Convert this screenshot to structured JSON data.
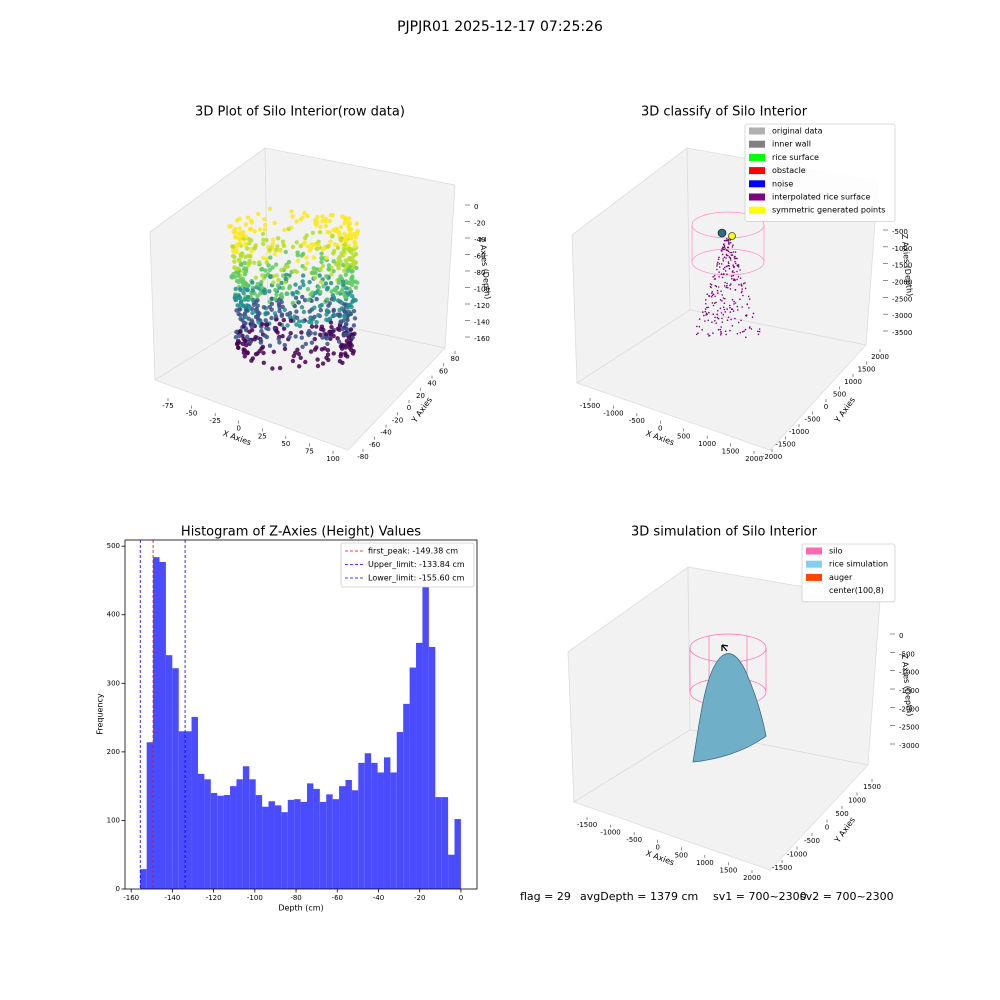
{
  "title": "PJPJR01 2025-12-17 07:25:26",
  "chart_data": [
    {
      "type": "scatter3d",
      "title": "3D Plot of Silo Interior(row data)",
      "xlabel": "X Axies",
      "ylabel": "Y Axies",
      "zlabel": "Z Axies (Depth)",
      "xticks": [
        -75,
        -50,
        -25,
        0,
        25,
        50,
        75,
        100
      ],
      "yticks": [
        -80,
        -60,
        -40,
        -20,
        0,
        20,
        40,
        60,
        80
      ],
      "zticks": [
        0,
        -20,
        -40,
        -60,
        -80,
        -100,
        -120,
        -140,
        -160
      ]
    },
    {
      "type": "scatter3d",
      "title": "3D classify of Silo Interior",
      "xlabel": "X Axies",
      "ylabel": "Y Axies",
      "zlabel": "Z Axies (Depth)",
      "xticks": [
        -1500,
        -1000,
        -500,
        0,
        500,
        1000,
        1500,
        2000
      ],
      "yticks": [
        -2000,
        -1500,
        -1000,
        -500,
        0,
        500,
        1000,
        1500,
        2000
      ],
      "zticks": [
        -500,
        -1000,
        -1500,
        -2000,
        -2500,
        -3000,
        -3500
      ],
      "legend": [
        {
          "name": "original data",
          "color": "#b0b0b0"
        },
        {
          "name": "inner wall",
          "color": "#808080"
        },
        {
          "name": "rice surface",
          "color": "#00ff00"
        },
        {
          "name": "obstacle",
          "color": "#ff0000"
        },
        {
          "name": "noise",
          "color": "#0000ff"
        },
        {
          "name": "interpolated rice surface",
          "color": "#800080"
        },
        {
          "name": "symmetric generated points",
          "color": "#ffff00"
        }
      ]
    },
    {
      "type": "histogram",
      "title": "Histogram of Z-Axies (Height) Values",
      "xlabel": "Depth (cm)",
      "ylabel": "Frequency",
      "color": "#4b4bff",
      "bins": [
        -155.6,
        -152.488,
        -149.376,
        -146.264,
        -143.152,
        -140.04,
        -136.928,
        -133.816,
        -130.704,
        -127.592,
        -124.48,
        -121.368,
        -118.256,
        -115.144,
        -112.032,
        -108.92,
        -105.808,
        -102.696,
        -99.584,
        -96.472,
        -93.36,
        -90.248,
        -87.136,
        -84.024,
        -80.912,
        -77.8,
        -74.688,
        -71.576,
        -68.464,
        -65.352,
        -62.24,
        -59.128,
        -56.016,
        -52.904,
        -49.792,
        -46.68,
        -43.568,
        -40.456,
        -37.344,
        -34.232,
        -31.12,
        -28.008,
        -24.896,
        -21.784,
        -18.672,
        -15.56,
        -12.448,
        -9.336,
        -6.224,
        -3.112,
        0
      ],
      "counts": [
        29,
        214,
        484,
        477,
        341,
        322,
        230,
        230,
        251,
        168,
        160,
        140,
        136,
        137,
        150,
        160,
        179,
        160,
        137,
        120,
        128,
        122,
        112,
        130,
        131,
        127,
        154,
        146,
        127,
        138,
        131,
        150,
        159,
        144,
        184,
        198,
        184,
        170,
        192,
        170,
        229,
        270,
        323,
        359,
        443,
        353,
        134,
        134,
        50,
        102
      ],
      "xlim": [
        -163,
        7.8
      ],
      "ylim": [
        0,
        509
      ],
      "xticks": [
        -160,
        -140,
        -120,
        -100,
        -80,
        -60,
        -40,
        -20,
        0
      ],
      "yticks": [
        0,
        100,
        200,
        300,
        400,
        500
      ],
      "lines": [
        {
          "name": "first_peak: -149.38 cm",
          "value": -149.38,
          "color": "#ff0000"
        },
        {
          "name": "Upper_limit: -133.84 cm",
          "value": -133.84,
          "color": "#0000ff"
        },
        {
          "name": "Lower_limit: -155.60 cm",
          "value": -155.6,
          "color": "#0000ff"
        }
      ]
    },
    {
      "type": "surface3d",
      "title": "3D simulation of Silo Interior",
      "xlabel": "X Axies",
      "ylabel": "Y Axies",
      "zlabel": "Z Axies (Depth)",
      "xticks": [
        -1500,
        -1000,
        -500,
        0,
        500,
        1000,
        1500,
        2000
      ],
      "yticks": [
        -1500,
        -1000,
        -500,
        0,
        500,
        1000,
        1500
      ],
      "zticks": [
        0,
        -500,
        -1000,
        -1500,
        -2000,
        -2500,
        -3000
      ],
      "legend": [
        {
          "name": "silo",
          "color": "#ff69b4"
        },
        {
          "name": "rice simulation",
          "color": "#87ceeb"
        },
        {
          "name": "auger",
          "color": "#ff4500"
        },
        {
          "name": "center(100,8)",
          "color": "#ffffff"
        }
      ]
    }
  ],
  "footer": [
    "flag = 29",
    "avgDepth = 1379 cm",
    "sv1 = 700~2300",
    "sv2 = 700~2300"
  ]
}
